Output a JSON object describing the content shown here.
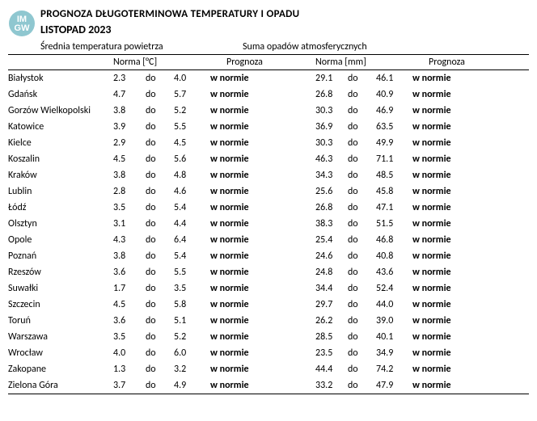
{
  "title": "PROGNOZA DŁUGOTERMINOWA TEMPERATURY I OPADU",
  "month": "LISTOPAD 2023",
  "logo": {
    "line1": "IM",
    "line2": "GW"
  },
  "sections": {
    "temp_label": "Średnia temperatura powietrza",
    "precip_label": "Suma opadów atmosferycznych"
  },
  "headers": {
    "city": "",
    "norm_temp": "Norma [°C]",
    "prog_temp": "Prognoza",
    "norm_precip": "Norma [mm]",
    "prog_precip": "Prognoza"
  },
  "do_word": "do",
  "in_norm": "w normie",
  "colors": {
    "logo_bg": "#8fc7d0",
    "logo_text": "#ffffff",
    "text": "#000000",
    "border": "#000000"
  },
  "rows": [
    {
      "city": "Białystok",
      "t_lo": "2.3",
      "t_hi": "4.0",
      "t_prog": "w normie",
      "p_lo": "29.1",
      "p_hi": "46.1",
      "p_prog": "w normie"
    },
    {
      "city": "Gdańsk",
      "t_lo": "4.7",
      "t_hi": "5.7",
      "t_prog": "w normie",
      "p_lo": "26.8",
      "p_hi": "40.9",
      "p_prog": "w normie"
    },
    {
      "city": "Gorzów Wielkopolski",
      "t_lo": "3.8",
      "t_hi": "5.2",
      "t_prog": "w normie",
      "p_lo": "30.3",
      "p_hi": "46.9",
      "p_prog": "w normie"
    },
    {
      "city": "Katowice",
      "t_lo": "3.9",
      "t_hi": "5.5",
      "t_prog": "w normie",
      "p_lo": "36.9",
      "p_hi": "63.5",
      "p_prog": "w normie"
    },
    {
      "city": "Kielce",
      "t_lo": "2.9",
      "t_hi": "4.5",
      "t_prog": "w normie",
      "p_lo": "30.3",
      "p_hi": "49.9",
      "p_prog": "w normie"
    },
    {
      "city": "Koszalin",
      "t_lo": "4.5",
      "t_hi": "5.6",
      "t_prog": "w normie",
      "p_lo": "46.3",
      "p_hi": "71.1",
      "p_prog": "w normie"
    },
    {
      "city": "Kraków",
      "t_lo": "3.8",
      "t_hi": "4.8",
      "t_prog": "w normie",
      "p_lo": "34.3",
      "p_hi": "48.5",
      "p_prog": "w normie"
    },
    {
      "city": "Lublin",
      "t_lo": "2.8",
      "t_hi": "4.6",
      "t_prog": "w normie",
      "p_lo": "25.6",
      "p_hi": "45.8",
      "p_prog": "w normie"
    },
    {
      "city": "Łódź",
      "t_lo": "3.5",
      "t_hi": "5.4",
      "t_prog": "w normie",
      "p_lo": "26.8",
      "p_hi": "47.1",
      "p_prog": "w normie"
    },
    {
      "city": "Olsztyn",
      "t_lo": "3.1",
      "t_hi": "4.4",
      "t_prog": "w normie",
      "p_lo": "38.3",
      "p_hi": "51.5",
      "p_prog": "w normie"
    },
    {
      "city": "Opole",
      "t_lo": "4.3",
      "t_hi": "6.4",
      "t_prog": "w normie",
      "p_lo": "25.4",
      "p_hi": "46.8",
      "p_prog": "w normie"
    },
    {
      "city": "Poznań",
      "t_lo": "3.8",
      "t_hi": "5.4",
      "t_prog": "w normie",
      "p_lo": "24.6",
      "p_hi": "40.8",
      "p_prog": "w normie"
    },
    {
      "city": "Rzeszów",
      "t_lo": "3.6",
      "t_hi": "5.5",
      "t_prog": "w normie",
      "p_lo": "24.8",
      "p_hi": "43.6",
      "p_prog": "w normie"
    },
    {
      "city": "Suwałki",
      "t_lo": "1.7",
      "t_hi": "3.5",
      "t_prog": "w normie",
      "p_lo": "34.4",
      "p_hi": "52.4",
      "p_prog": "w normie"
    },
    {
      "city": "Szczecin",
      "t_lo": "4.5",
      "t_hi": "5.8",
      "t_prog": "w normie",
      "p_lo": "29.7",
      "p_hi": "44.0",
      "p_prog": "w normie"
    },
    {
      "city": "Toruń",
      "t_lo": "3.6",
      "t_hi": "5.1",
      "t_prog": "w normie",
      "p_lo": "26.2",
      "p_hi": "39.0",
      "p_prog": "w normie"
    },
    {
      "city": "Warszawa",
      "t_lo": "3.5",
      "t_hi": "5.2",
      "t_prog": "w normie",
      "p_lo": "28.5",
      "p_hi": "40.1",
      "p_prog": "w normie"
    },
    {
      "city": "Wrocław",
      "t_lo": "4.0",
      "t_hi": "6.0",
      "t_prog": "w normie",
      "p_lo": "23.5",
      "p_hi": "34.9",
      "p_prog": "w normie"
    },
    {
      "city": "Zakopane",
      "t_lo": "1.3",
      "t_hi": "3.2",
      "t_prog": "w normie",
      "p_lo": "44.4",
      "p_hi": "74.2",
      "p_prog": "w normie"
    },
    {
      "city": "Zielona Góra",
      "t_lo": "3.7",
      "t_hi": "4.9",
      "t_prog": "w normie",
      "p_lo": "33.2",
      "p_hi": "47.9",
      "p_prog": "w normie"
    }
  ]
}
